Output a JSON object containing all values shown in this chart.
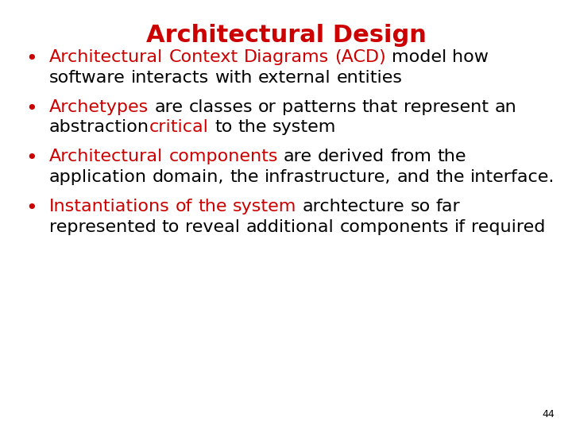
{
  "title": "Architectural Design",
  "title_color": "#cc0000",
  "title_fontsize": 22,
  "background_color": "#ffffff",
  "bullet_color": "#cc0000",
  "black_color": "#000000",
  "red_color": "#cc0000",
  "page_number": "44",
  "page_number_fontsize": 9,
  "bullet_fontsize": 16,
  "bullets": [
    {
      "segments": [
        {
          "text": "Architectural Context Diagrams (ACD)",
          "color": "#cc0000"
        },
        {
          "text": " model how software interacts with external entities",
          "color": "#000000"
        }
      ]
    },
    {
      "segments": [
        {
          "text": "Archetypes",
          "color": "#cc0000"
        },
        {
          "text": " are classes or patterns that represent an abstraction ",
          "color": "#000000"
        },
        {
          "text": "critical",
          "color": "#cc0000"
        },
        {
          "text": " to the system",
          "color": "#000000"
        }
      ]
    },
    {
      "segments": [
        {
          "text": "Architectural components",
          "color": "#cc0000"
        },
        {
          "text": " are derived from the application domain, the infrastructure, and the interface.",
          "color": "#000000"
        }
      ]
    },
    {
      "segments": [
        {
          "text": "Instantiations of the system",
          "color": "#cc0000"
        },
        {
          "text": " archtecture so far represented to reveal additional components if required",
          "color": "#000000"
        }
      ]
    }
  ]
}
